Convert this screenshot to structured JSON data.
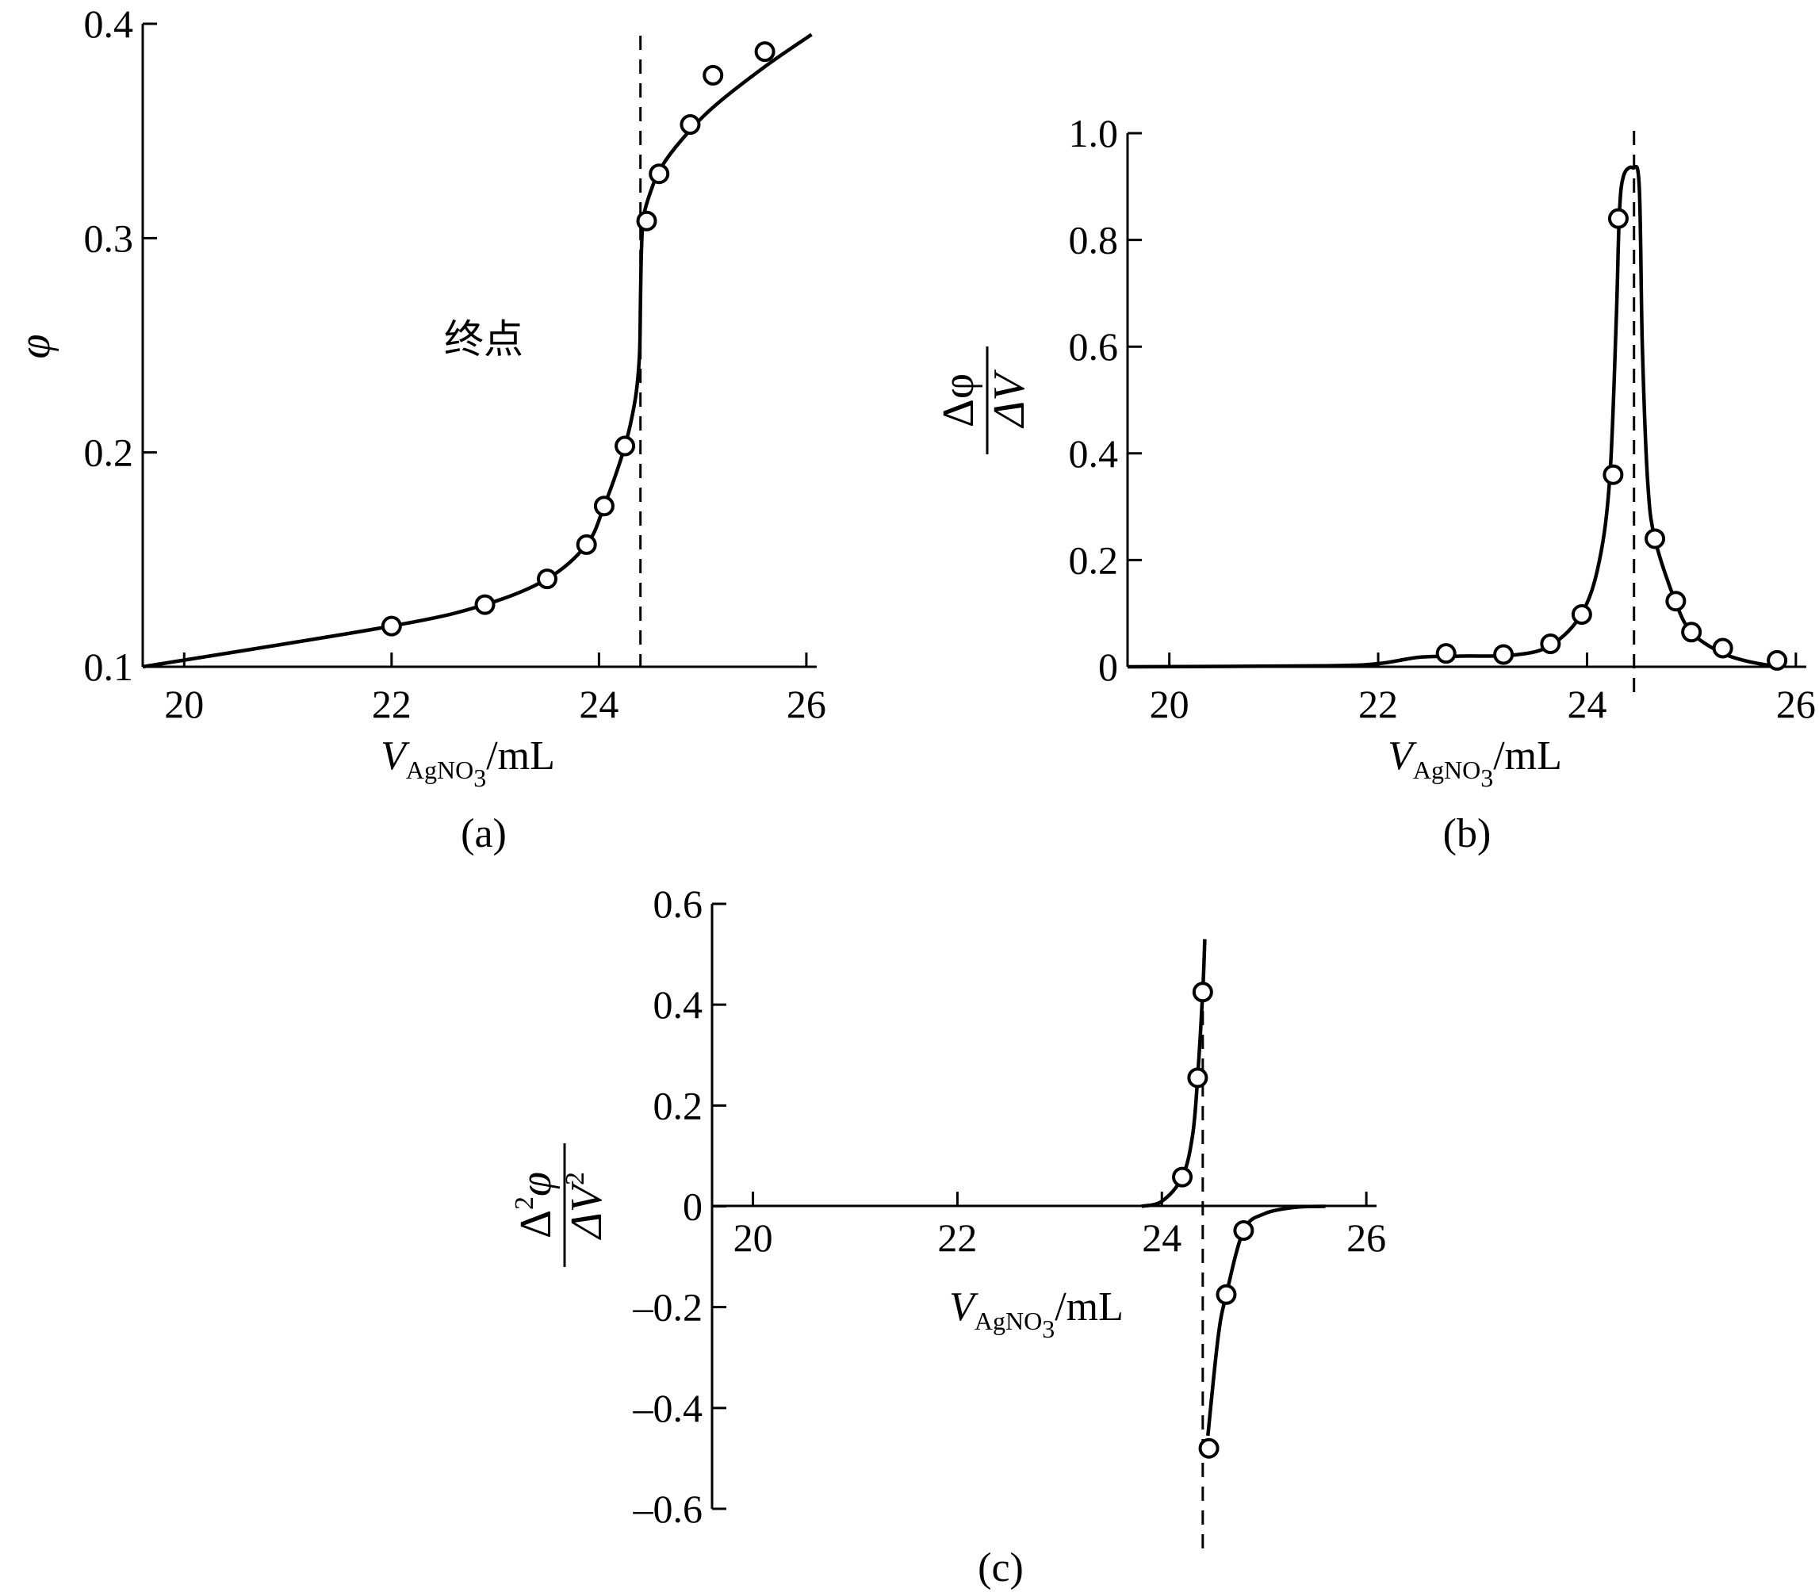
{
  "chart_data": [
    {
      "id": "a",
      "type": "line",
      "panel_label": "(a)",
      "xlabel": {
        "main": "V",
        "sub": "AgNO",
        "sub2": "3",
        "unit": "/mL"
      },
      "ylabel": "φ",
      "xlim": [
        19.6,
        26.1
      ],
      "ylim": [
        0.1,
        0.4
      ],
      "xticks": [
        "20",
        "22",
        "24",
        "26"
      ],
      "yticks": [
        "0.1",
        "0.2",
        "0.3",
        "0.4"
      ],
      "annotation": "终点",
      "endpoint_x": 24.4,
      "points": [
        [
          22.0,
          0.119
        ],
        [
          22.9,
          0.129
        ],
        [
          23.5,
          0.141
        ],
        [
          23.88,
          0.157
        ],
        [
          24.05,
          0.175
        ],
        [
          24.25,
          0.203
        ],
        [
          24.46,
          0.308
        ],
        [
          24.58,
          0.33
        ],
        [
          24.88,
          0.353
        ],
        [
          25.1,
          0.376
        ],
        [
          25.6,
          0.387
        ]
      ],
      "curve": [
        [
          19.6,
          0.1
        ],
        [
          22.0,
          0.119
        ],
        [
          22.9,
          0.129
        ],
        [
          23.5,
          0.141
        ],
        [
          23.88,
          0.157
        ],
        [
          24.05,
          0.175
        ],
        [
          24.25,
          0.203
        ],
        [
          24.35,
          0.225
        ],
        [
          24.39,
          0.245
        ],
        [
          24.4,
          0.27
        ],
        [
          24.41,
          0.295
        ],
        [
          24.43,
          0.31
        ],
        [
          24.5,
          0.322
        ],
        [
          24.6,
          0.333
        ],
        [
          24.8,
          0.346
        ],
        [
          25.1,
          0.361
        ],
        [
          25.6,
          0.38
        ],
        [
          26.05,
          0.395
        ]
      ]
    },
    {
      "id": "b",
      "type": "line",
      "panel_label": "(b)",
      "xlabel": {
        "main": "V",
        "sub": "AgNO",
        "sub2": "3",
        "unit": "/mL"
      },
      "ylabel": {
        "num": "Δφ",
        "den": "ΔV"
      },
      "xlim": [
        19.6,
        26.1
      ],
      "ylim": [
        0,
        1.0
      ],
      "xticks": [
        "20",
        "22",
        "24",
        "26"
      ],
      "yticks": [
        "0",
        "0.2",
        "0.4",
        "0.6",
        "0.8",
        "1.0"
      ],
      "endpoint_x": 24.45,
      "points": [
        [
          22.65,
          0.025
        ],
        [
          23.2,
          0.023
        ],
        [
          23.65,
          0.043
        ],
        [
          23.95,
          0.098
        ],
        [
          24.25,
          0.36
        ],
        [
          24.3,
          0.84
        ],
        [
          24.65,
          0.24
        ],
        [
          24.85,
          0.123
        ],
        [
          25.0,
          0.065
        ],
        [
          25.3,
          0.035
        ],
        [
          25.82,
          0.012
        ]
      ],
      "curve": [
        [
          19.6,
          0.0
        ],
        [
          21.5,
          0.002
        ],
        [
          22.0,
          0.006
        ],
        [
          22.4,
          0.018
        ],
        [
          22.8,
          0.02
        ],
        [
          23.3,
          0.022
        ],
        [
          23.65,
          0.04
        ],
        [
          23.95,
          0.1
        ],
        [
          24.12,
          0.2
        ],
        [
          24.22,
          0.36
        ],
        [
          24.28,
          0.65
        ],
        [
          24.31,
          0.85
        ],
        [
          24.35,
          0.92
        ],
        [
          24.44,
          0.935
        ],
        [
          24.5,
          0.9
        ],
        [
          24.53,
          0.6
        ],
        [
          24.58,
          0.35
        ],
        [
          24.65,
          0.24
        ],
        [
          24.85,
          0.12
        ],
        [
          25.0,
          0.065
        ],
        [
          25.25,
          0.03
        ],
        [
          25.5,
          0.012
        ],
        [
          25.82,
          0.0
        ]
      ]
    },
    {
      "id": "c",
      "type": "line",
      "panel_label": "(c)",
      "xlabel": {
        "main": "V",
        "sub": "AgNO",
        "sub2": "3",
        "unit": "/mL"
      },
      "ylabel": {
        "num": "Δ",
        "num_sup": "2",
        "num_sym": "φ",
        "den": "ΔV",
        "den_sup": "2"
      },
      "xlim": [
        19.6,
        26.1
      ],
      "ylim": [
        -0.6,
        0.6
      ],
      "xticks": [
        "20",
        "22",
        "24",
        "26"
      ],
      "yticks": [
        "–0.6",
        "–0.4",
        "–0.2",
        "0",
        "0.2",
        "0.4",
        "0.6"
      ],
      "endpoint_x": 24.4,
      "points": [
        [
          24.2,
          0.058
        ],
        [
          24.35,
          0.255
        ],
        [
          24.4,
          0.425
        ],
        [
          24.46,
          -0.48
        ],
        [
          24.63,
          -0.175
        ],
        [
          24.8,
          -0.048
        ]
      ],
      "curve_pos": [
        [
          23.8,
          0.0
        ],
        [
          24.0,
          0.01
        ],
        [
          24.2,
          0.058
        ],
        [
          24.3,
          0.14
        ],
        [
          24.35,
          0.255
        ],
        [
          24.4,
          0.425
        ],
        [
          24.42,
          0.53
        ]
      ],
      "curve_neg": [
        [
          24.45,
          -0.455
        ],
        [
          24.55,
          -0.26
        ],
        [
          24.63,
          -0.175
        ],
        [
          24.8,
          -0.048
        ],
        [
          25.0,
          -0.015
        ],
        [
          25.3,
          -0.002
        ],
        [
          25.6,
          0.0
        ]
      ]
    }
  ]
}
